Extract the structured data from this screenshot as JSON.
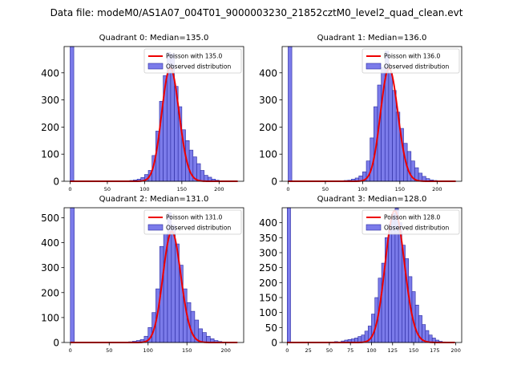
{
  "suptitle": "Data file: modeM0/AS1A07_004T01_9000003230_21852cztM0_level2_quad_clean.evt",
  "chart_data": [
    {
      "type": "bar",
      "title": "Quadrant 0: Median=135.0",
      "legend": [
        "Poisson with 135.0",
        "Observed distribution"
      ],
      "legend_placement": "top-right",
      "xlim": [
        -8,
        233
      ],
      "ylim": [
        0,
        497
      ],
      "xticks": [
        0,
        50,
        100,
        150,
        200
      ],
      "yticks": [
        0,
        100,
        200,
        300,
        400
      ],
      "poisson_mean": 135.0,
      "poisson_peak": 418,
      "bins": {
        "start": 0,
        "width": 5,
        "counts": [
          497,
          0,
          0,
          0,
          0,
          0,
          0,
          0,
          0,
          0,
          0,
          0,
          0,
          0,
          2,
          2,
          3,
          5,
          8,
          14,
          25,
          40,
          95,
          185,
          295,
          390,
          475,
          470,
          350,
          275,
          190,
          150,
          115,
          90,
          65,
          40,
          22,
          15,
          8,
          4,
          2,
          1,
          0,
          0,
          0
        ]
      }
    },
    {
      "type": "bar",
      "title": "Quadrant 1: Median=136.0",
      "legend": [
        "Poisson with 136.0",
        "Observed distribution"
      ],
      "legend_placement": "top-right",
      "xlim": [
        -8,
        233
      ],
      "ylim": [
        0,
        497
      ],
      "xticks": [
        0,
        50,
        100,
        150,
        200
      ],
      "yticks": [
        0,
        100,
        200,
        300,
        400
      ],
      "poisson_mean": 136.0,
      "poisson_peak": 416,
      "bins": {
        "start": 0,
        "width": 5,
        "counts": [
          497,
          0,
          0,
          0,
          0,
          0,
          0,
          0,
          0,
          0,
          0,
          0,
          0,
          0,
          2,
          3,
          4,
          8,
          12,
          20,
          35,
          75,
          160,
          275,
          355,
          420,
          480,
          400,
          335,
          255,
          195,
          140,
          110,
          75,
          50,
          30,
          18,
          10,
          5,
          3,
          1,
          0,
          0,
          0,
          0
        ]
      }
    },
    {
      "type": "bar",
      "title": "Quadrant 2: Median=131.0",
      "legend": [
        "Poisson with 131.0",
        "Observed distribution"
      ],
      "legend_placement": "top-right",
      "xlim": [
        -8,
        223
      ],
      "ylim": [
        0,
        540
      ],
      "xticks": [
        0,
        50,
        100,
        150,
        200
      ],
      "yticks": [
        0,
        100,
        200,
        300,
        400,
        500
      ],
      "poisson_mean": 131.0,
      "poisson_peak": 445,
      "bins": {
        "start": 0,
        "width": 5,
        "counts": [
          540,
          0,
          0,
          0,
          0,
          0,
          0,
          0,
          0,
          0,
          0,
          0,
          0,
          0,
          2,
          3,
          5,
          8,
          12,
          25,
          60,
          120,
          215,
          385,
          435,
          520,
          470,
          395,
          310,
          215,
          160,
          125,
          90,
          55,
          40,
          25,
          15,
          8,
          4,
          2,
          1,
          0,
          0
        ]
      }
    },
    {
      "type": "bar",
      "title": "Quadrant 3: Median=128.0",
      "legend": [
        "Poisson with 128.0",
        "Observed distribution"
      ],
      "legend_placement": "top-right",
      "xlim": [
        -6,
        207
      ],
      "ylim": [
        0,
        450
      ],
      "xticks": [
        0,
        25,
        50,
        75,
        100,
        125,
        150,
        175,
        200
      ],
      "yticks": [
        0,
        50,
        100,
        150,
        200,
        250,
        300,
        350,
        400
      ],
      "poisson_mean": 128.0,
      "poisson_peak": 440,
      "bins": {
        "start": 0,
        "width": 4,
        "counts": [
          450,
          0,
          0,
          0,
          0,
          0,
          0,
          0,
          0,
          0,
          0,
          0,
          0,
          0,
          3,
          2,
          5,
          8,
          10,
          12,
          15,
          20,
          25,
          38,
          55,
          95,
          150,
          215,
          265,
          350,
          395,
          430,
          448,
          400,
          325,
          280,
          220,
          170,
          125,
          90,
          60,
          40,
          25,
          15,
          8,
          4,
          2,
          1
        ]
      }
    }
  ]
}
